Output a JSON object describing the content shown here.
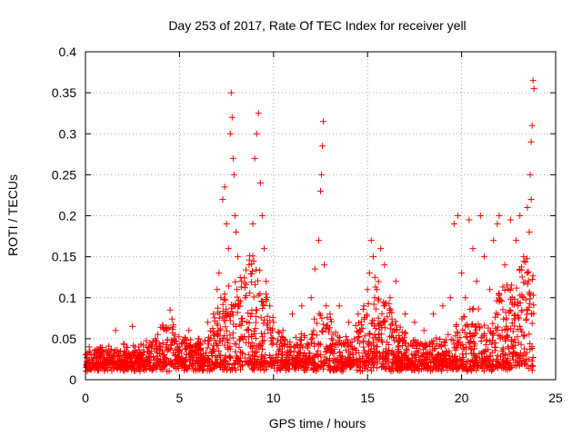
{
  "chart_data": {
    "type": "scatter",
    "title": "Day 253 of 2017, Rate Of TEC Index for receiver yell",
    "xlabel": "GPS time / hours",
    "ylabel": "ROTI / TECUs",
    "xlim": [
      0,
      25
    ],
    "ylim": [
      0,
      0.4
    ],
    "x_ticks": [
      0,
      5,
      10,
      15,
      20,
      25
    ],
    "x_tick_labels": [
      "0",
      "5",
      "10",
      "15",
      "20",
      "25"
    ],
    "y_ticks": [
      0,
      0.05,
      0.1,
      0.15,
      0.2,
      0.25,
      0.3,
      0.35,
      0.4
    ],
    "y_tick_labels": [
      "0",
      "0.05",
      "0.1",
      "0.15",
      "0.2",
      "0.25",
      "0.3",
      "0.35",
      "0.4"
    ],
    "grid": true,
    "marker": "+",
    "color": "#ff0000",
    "series": [
      {
        "name": "ROTI",
        "description": "dense baseline 0.01–0.04 across 0–23.8 h; enhanced scatter around 4.5 h, 7–9.5 h, 12.5 h, 15–16.5 h, 19.5–24 h",
        "points": [
          [
            0.1,
            0.02
          ],
          [
            0.2,
            0.04
          ],
          [
            0.3,
            0.03
          ],
          [
            0.5,
            0.015
          ],
          [
            0.8,
            0.02
          ],
          [
            1.0,
            0.025
          ],
          [
            1.3,
            0.03
          ],
          [
            1.6,
            0.06
          ],
          [
            2.0,
            0.03
          ],
          [
            2.5,
            0.065
          ],
          [
            3.0,
            0.03
          ],
          [
            3.5,
            0.035
          ],
          [
            4.0,
            0.04
          ],
          [
            4.3,
            0.06
          ],
          [
            4.5,
            0.085
          ],
          [
            4.7,
            0.05
          ],
          [
            5.0,
            0.04
          ],
          [
            5.5,
            0.06
          ],
          [
            6.0,
            0.05
          ],
          [
            6.5,
            0.07
          ],
          [
            6.8,
            0.08
          ],
          [
            7.0,
            0.11
          ],
          [
            7.2,
            0.1
          ],
          [
            7.1,
            0.13
          ],
          [
            7.3,
            0.22
          ],
          [
            7.4,
            0.235
          ],
          [
            7.5,
            0.19
          ],
          [
            7.6,
            0.16
          ],
          [
            7.7,
            0.3
          ],
          [
            7.75,
            0.35
          ],
          [
            7.8,
            0.32
          ],
          [
            7.85,
            0.27
          ],
          [
            7.9,
            0.25
          ],
          [
            7.95,
            0.2
          ],
          [
            8.0,
            0.18
          ],
          [
            8.1,
            0.15
          ],
          [
            8.3,
            0.12
          ],
          [
            8.5,
            0.1
          ],
          [
            8.7,
            0.14
          ],
          [
            8.9,
            0.19
          ],
          [
            9.0,
            0.27
          ],
          [
            9.1,
            0.3
          ],
          [
            9.2,
            0.325
          ],
          [
            9.3,
            0.24
          ],
          [
            9.4,
            0.2
          ],
          [
            9.5,
            0.16
          ],
          [
            9.6,
            0.12
          ],
          [
            9.8,
            0.09
          ],
          [
            10.0,
            0.07
          ],
          [
            10.5,
            0.06
          ],
          [
            11.0,
            0.08
          ],
          [
            11.5,
            0.09
          ],
          [
            12.0,
            0.1
          ],
          [
            12.2,
            0.135
          ],
          [
            12.4,
            0.17
          ],
          [
            12.5,
            0.23
          ],
          [
            12.55,
            0.25
          ],
          [
            12.6,
            0.285
          ],
          [
            12.65,
            0.315
          ],
          [
            12.7,
            0.14
          ],
          [
            12.8,
            0.09
          ],
          [
            13.0,
            0.08
          ],
          [
            13.5,
            0.09
          ],
          [
            14.0,
            0.07
          ],
          [
            14.5,
            0.08
          ],
          [
            14.8,
            0.09
          ],
          [
            15.0,
            0.11
          ],
          [
            15.1,
            0.13
          ],
          [
            15.2,
            0.17
          ],
          [
            15.3,
            0.15
          ],
          [
            15.5,
            0.11
          ],
          [
            15.7,
            0.16
          ],
          [
            15.9,
            0.14
          ],
          [
            16.2,
            0.1
          ],
          [
            16.5,
            0.12
          ],
          [
            17.0,
            0.08
          ],
          [
            17.5,
            0.07
          ],
          [
            18.0,
            0.06
          ],
          [
            18.5,
            0.08
          ],
          [
            19.0,
            0.09
          ],
          [
            19.4,
            0.1
          ],
          [
            19.6,
            0.19
          ],
          [
            19.8,
            0.2
          ],
          [
            20.0,
            0.13
          ],
          [
            20.2,
            0.1
          ],
          [
            20.4,
            0.195
          ],
          [
            20.6,
            0.16
          ],
          [
            20.8,
            0.12
          ],
          [
            21.0,
            0.2
          ],
          [
            21.2,
            0.15
          ],
          [
            21.5,
            0.11
          ],
          [
            21.7,
            0.17
          ],
          [
            21.9,
            0.19
          ],
          [
            22.0,
            0.2
          ],
          [
            22.3,
            0.14
          ],
          [
            22.6,
            0.195
          ],
          [
            22.9,
            0.17
          ],
          [
            23.1,
            0.2
          ],
          [
            23.3,
            0.15
          ],
          [
            23.5,
            0.21
          ],
          [
            23.6,
            0.18
          ],
          [
            23.65,
            0.25
          ],
          [
            23.7,
            0.29
          ],
          [
            23.75,
            0.31
          ],
          [
            23.8,
            0.365
          ],
          [
            23.85,
            0.355
          ],
          [
            23.7,
            0.22
          ],
          [
            23.5,
            0.13
          ],
          [
            23.3,
            0.1
          ],
          [
            23.0,
            0.09
          ]
        ]
      }
    ]
  }
}
